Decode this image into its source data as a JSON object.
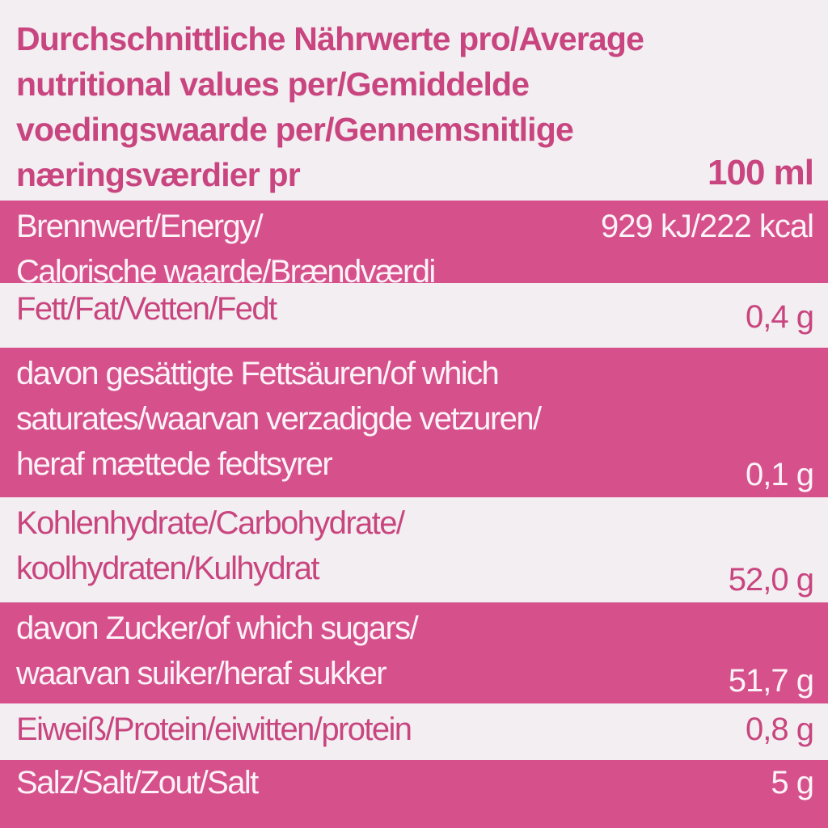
{
  "rows": [
    {
      "label": [
        "Durchschnittliche Nährwerte pro/Average",
        "nutritional values per/Gemiddelde",
        "voedingswaarde per/Gennemsnitlige",
        "næringsværdier pr"
      ],
      "value": "100 ml"
    },
    {
      "label": [
        "Brennwert/Energy/",
        "Calorische waarde/Brændværdi"
      ],
      "value": "929 kJ/222 kcal"
    },
    {
      "label": [
        "Fett/Fat/Vetten/Fedt"
      ],
      "value": "0,4 g"
    },
    {
      "label": [
        "davon gesättigte Fettsäuren/of which",
        "saturates/waarvan verzadigde vetzuren/",
        "heraf mættede fedtsyrer"
      ],
      "value": "0,1 g"
    },
    {
      "label": [
        "Kohlenhydrate/Carbohydrate/",
        "koolhydraten/Kulhydrat"
      ],
      "value": "52,0 g"
    },
    {
      "label": [
        "davon Zucker/of which sugars/",
        "waarvan suiker/heraf sukker"
      ],
      "value": "51,7 g"
    },
    {
      "label": [
        "Eiweiß/Protein/eiwitten/protein"
      ],
      "value": "0,8 g"
    },
    {
      "label": [
        "Salz/Salt/Zout/Salt"
      ],
      "value": "5 g"
    }
  ]
}
